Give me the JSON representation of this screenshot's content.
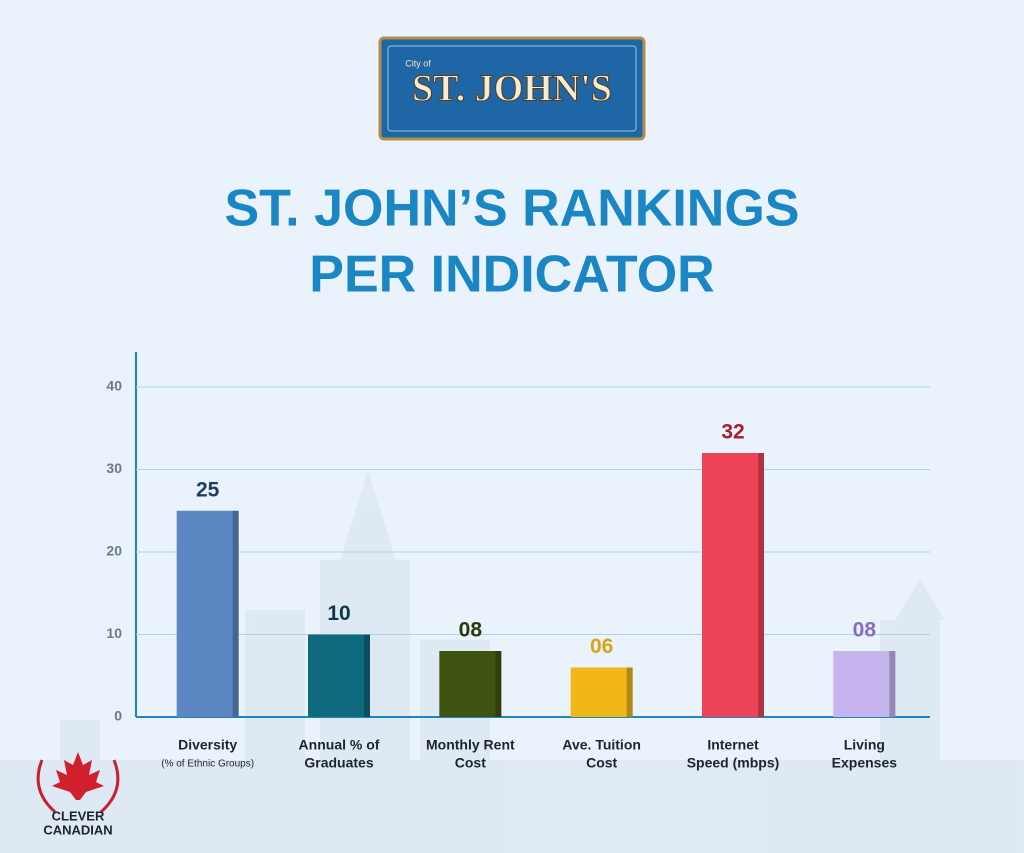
{
  "logo": {
    "small": "City of",
    "name": "ST. JOHN'S"
  },
  "brand": [
    "CLEVER",
    "CANADIAN"
  ],
  "chart_data": {
    "type": "bar",
    "title": [
      "ST. JOHN’S RANKINGS",
      "PER INDICATOR"
    ],
    "categories": [
      [
        "Diversity",
        "(% of Ethnic Groups)"
      ],
      [
        "Annual % of",
        "Graduates"
      ],
      [
        "Monthly Rent",
        "Cost"
      ],
      [
        "Ave. Tuition",
        "Cost"
      ],
      [
        "Internet",
        "Speed (mbps)"
      ],
      [
        "Living",
        "Expenses"
      ]
    ],
    "values": [
      25,
      10,
      8,
      6,
      32,
      8
    ],
    "value_labels": [
      "25",
      "10",
      "08",
      "06",
      "32",
      "08"
    ],
    "colors": [
      "#5d87c3",
      "#0f6a7e",
      "#3f5311",
      "#f1b717",
      "#ee4357",
      "#c6b4ef"
    ],
    "value_label_colors": [
      "#1f3b5f",
      "#0d3b45",
      "#2c3a0b",
      "#d9a414",
      "#a81e2c",
      "#8a6bc4"
    ],
    "ylim": [
      0,
      44
    ],
    "yticks": [
      0,
      10,
      20,
      30,
      40
    ],
    "grid": true
  }
}
